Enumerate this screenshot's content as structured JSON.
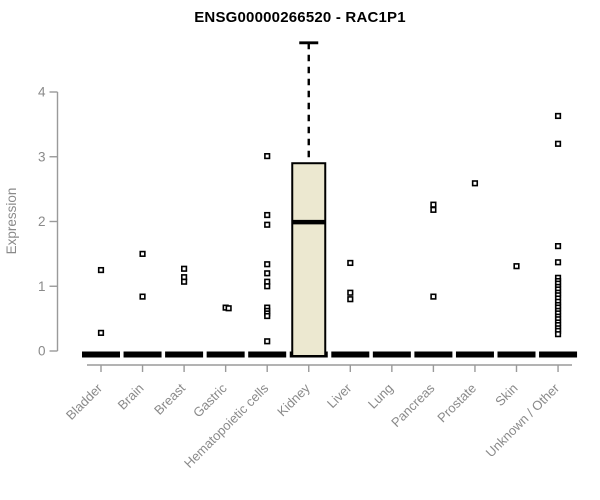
{
  "chart_data": {
    "type": "boxplot",
    "title": "ENSG00000266520 - RAC1P1",
    "ylabel": "Expression",
    "yticks": [
      0,
      1,
      2,
      3,
      4
    ],
    "ylim": [
      0,
      4
    ],
    "grid": false,
    "legend": null,
    "colors": {
      "box_fill": "#ece8d0",
      "box_stroke": "#000000",
      "zero_bar": "#000000",
      "point_stroke": "#000000",
      "point_fill": "#ffffff",
      "axis": "#9a9a9a",
      "label": "#8a8a8a",
      "title": "#000000"
    },
    "categories": [
      {
        "label": "Bladder",
        "zero_bar": true,
        "box": null,
        "outliers": [
          1.25,
          0.28
        ]
      },
      {
        "label": "Brain",
        "zero_bar": true,
        "box": null,
        "outliers": [
          1.5,
          0.84
        ]
      },
      {
        "label": "Breast",
        "zero_bar": true,
        "box": null,
        "outliers": [
          1.27,
          1.14,
          1.07
        ]
      },
      {
        "label": "Gastric",
        "zero_bar": true,
        "box": null,
        "outliers": [
          0.67,
          0.66
        ]
      },
      {
        "label": "Hematopoietic cells",
        "zero_bar": true,
        "box": null,
        "outliers": [
          3.01,
          2.1,
          1.95,
          1.34,
          1.2,
          1.07,
          1.0,
          0.67,
          0.62,
          0.58,
          0.54,
          0.15
        ]
      },
      {
        "label": "Kidney",
        "zero_bar": true,
        "box": {
          "q1": 0.0,
          "median": 1.99,
          "q3": 2.9,
          "whisker_high": 4.76
        },
        "outliers": []
      },
      {
        "label": "Liver",
        "zero_bar": true,
        "box": null,
        "outliers": [
          1.36,
          0.9,
          0.8
        ]
      },
      {
        "label": "Lung",
        "zero_bar": true,
        "box": null,
        "outliers": []
      },
      {
        "label": "Pancreas",
        "zero_bar": true,
        "box": null,
        "outliers": [
          2.26,
          2.18,
          0.84
        ]
      },
      {
        "label": "Prostate",
        "zero_bar": true,
        "box": null,
        "outliers": [
          2.59
        ]
      },
      {
        "label": "Skin",
        "zero_bar": true,
        "box": null,
        "outliers": [
          1.31
        ]
      },
      {
        "label": "Unknown / Other",
        "zero_bar": true,
        "box": null,
        "outliers": [
          3.63,
          3.2,
          1.62,
          1.37,
          1.13,
          1.08,
          1.04,
          0.99,
          0.95,
          0.9,
          0.86,
          0.81,
          0.76,
          0.71,
          0.67,
          0.62,
          0.58,
          0.53,
          0.49,
          0.44,
          0.4,
          0.35,
          0.31,
          0.26
        ]
      }
    ]
  }
}
